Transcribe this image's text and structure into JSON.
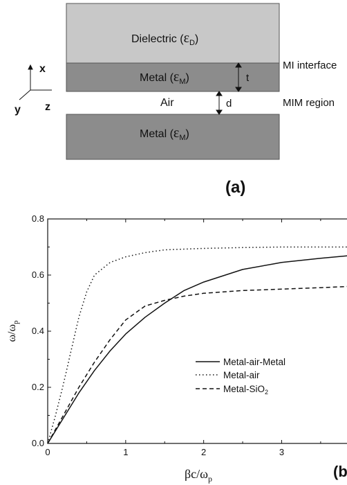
{
  "figure_a": {
    "layers": {
      "dielectric_label": "Dielectric (",
      "dielectric_symbol": "ε",
      "dielectric_sub": "D",
      "metal_top_label": "Metal (",
      "metal_symbol": "ε",
      "metal_sub": "M",
      "metal_bottom_label": "Metal (",
      "air_label": "Air",
      "close_paren": ")"
    },
    "dimensions": {
      "t_label": "t",
      "d_label": "d"
    },
    "side_labels": {
      "mi_interface": "MI interface",
      "mim_region": "MIM region"
    },
    "axes": {
      "x": "x",
      "y": "y",
      "z": "z"
    },
    "panel_label": "(a)",
    "colors": {
      "dielectric": "#c8c8c8",
      "metal": "#8c8c8c",
      "outline": "#555555"
    }
  },
  "figure_b": {
    "panel_label": "(b",
    "legend": [
      {
        "label": "Metal-air-Metal",
        "dash": "solid"
      },
      {
        "label": "Metal-air",
        "dash": "dotted"
      },
      {
        "label": "Metal-SiO",
        "sub": "2",
        "dash": "dashed"
      }
    ],
    "chart_data": {
      "type": "line",
      "xlabel": "βc/ω",
      "xlabel_sub": "p",
      "ylabel": "ω/ω",
      "ylabel_sub": "p",
      "xlim": [
        0,
        3.9
      ],
      "ylim": [
        0,
        0.8
      ],
      "xticks": [
        "0",
        "1",
        "2",
        "3"
      ],
      "yticks": [
        "0.0",
        "0.2",
        "0.4",
        "0.6",
        "0.8"
      ],
      "series": [
        {
          "name": "Metal-air-Metal",
          "style": "solid",
          "x": [
            0,
            0.2,
            0.4,
            0.6,
            0.8,
            1.0,
            1.25,
            1.5,
            1.75,
            2.0,
            2.5,
            3.0,
            3.5,
            3.9
          ],
          "y": [
            0,
            0.09,
            0.18,
            0.26,
            0.33,
            0.39,
            0.45,
            0.5,
            0.545,
            0.575,
            0.62,
            0.645,
            0.66,
            0.67
          ]
        },
        {
          "name": "Metal-air",
          "style": "dotted",
          "x": [
            0,
            0.1,
            0.2,
            0.3,
            0.4,
            0.5,
            0.6,
            0.8,
            1.0,
            1.25,
            1.5,
            2.0,
            2.5,
            3.0,
            3.5,
            3.9
          ],
          "y": [
            0,
            0.1,
            0.21,
            0.33,
            0.45,
            0.54,
            0.6,
            0.645,
            0.665,
            0.68,
            0.69,
            0.695,
            0.698,
            0.7,
            0.7,
            0.7
          ]
        },
        {
          "name": "Metal-SiO2",
          "style": "dashed",
          "x": [
            0,
            0.2,
            0.4,
            0.6,
            0.8,
            1.0,
            1.25,
            1.5,
            1.75,
            2.0,
            2.5,
            3.0,
            3.5,
            3.9
          ],
          "y": [
            0,
            0.1,
            0.2,
            0.29,
            0.37,
            0.44,
            0.49,
            0.51,
            0.525,
            0.535,
            0.545,
            0.55,
            0.555,
            0.56
          ]
        }
      ]
    }
  }
}
